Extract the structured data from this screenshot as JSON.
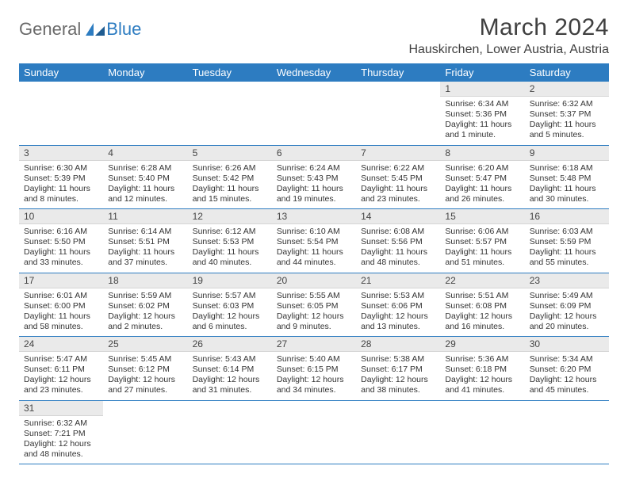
{
  "brand": {
    "name_gray": "General",
    "name_blue": "Blue"
  },
  "title": "March 2024",
  "location": "Hauskirchen, Lower Austria, Austria",
  "colors": {
    "header_bg": "#2d7cc1",
    "header_fg": "#ffffff",
    "daynum_bg": "#eaeaea",
    "row_border": "#2d7cc1",
    "text": "#333333",
    "logo_gray": "#6a6a6a",
    "logo_blue": "#2d7cc1"
  },
  "weekdays": [
    "Sunday",
    "Monday",
    "Tuesday",
    "Wednesday",
    "Thursday",
    "Friday",
    "Saturday"
  ],
  "weeks": [
    [
      {
        "n": "",
        "sr": "",
        "ss": "",
        "dl": ""
      },
      {
        "n": "",
        "sr": "",
        "ss": "",
        "dl": ""
      },
      {
        "n": "",
        "sr": "",
        "ss": "",
        "dl": ""
      },
      {
        "n": "",
        "sr": "",
        "ss": "",
        "dl": ""
      },
      {
        "n": "",
        "sr": "",
        "ss": "",
        "dl": ""
      },
      {
        "n": "1",
        "sr": "Sunrise: 6:34 AM",
        "ss": "Sunset: 5:36 PM",
        "dl": "Daylight: 11 hours and 1 minute."
      },
      {
        "n": "2",
        "sr": "Sunrise: 6:32 AM",
        "ss": "Sunset: 5:37 PM",
        "dl": "Daylight: 11 hours and 5 minutes."
      }
    ],
    [
      {
        "n": "3",
        "sr": "Sunrise: 6:30 AM",
        "ss": "Sunset: 5:39 PM",
        "dl": "Daylight: 11 hours and 8 minutes."
      },
      {
        "n": "4",
        "sr": "Sunrise: 6:28 AM",
        "ss": "Sunset: 5:40 PM",
        "dl": "Daylight: 11 hours and 12 minutes."
      },
      {
        "n": "5",
        "sr": "Sunrise: 6:26 AM",
        "ss": "Sunset: 5:42 PM",
        "dl": "Daylight: 11 hours and 15 minutes."
      },
      {
        "n": "6",
        "sr": "Sunrise: 6:24 AM",
        "ss": "Sunset: 5:43 PM",
        "dl": "Daylight: 11 hours and 19 minutes."
      },
      {
        "n": "7",
        "sr": "Sunrise: 6:22 AM",
        "ss": "Sunset: 5:45 PM",
        "dl": "Daylight: 11 hours and 23 minutes."
      },
      {
        "n": "8",
        "sr": "Sunrise: 6:20 AM",
        "ss": "Sunset: 5:47 PM",
        "dl": "Daylight: 11 hours and 26 minutes."
      },
      {
        "n": "9",
        "sr": "Sunrise: 6:18 AM",
        "ss": "Sunset: 5:48 PM",
        "dl": "Daylight: 11 hours and 30 minutes."
      }
    ],
    [
      {
        "n": "10",
        "sr": "Sunrise: 6:16 AM",
        "ss": "Sunset: 5:50 PM",
        "dl": "Daylight: 11 hours and 33 minutes."
      },
      {
        "n": "11",
        "sr": "Sunrise: 6:14 AM",
        "ss": "Sunset: 5:51 PM",
        "dl": "Daylight: 11 hours and 37 minutes."
      },
      {
        "n": "12",
        "sr": "Sunrise: 6:12 AM",
        "ss": "Sunset: 5:53 PM",
        "dl": "Daylight: 11 hours and 40 minutes."
      },
      {
        "n": "13",
        "sr": "Sunrise: 6:10 AM",
        "ss": "Sunset: 5:54 PM",
        "dl": "Daylight: 11 hours and 44 minutes."
      },
      {
        "n": "14",
        "sr": "Sunrise: 6:08 AM",
        "ss": "Sunset: 5:56 PM",
        "dl": "Daylight: 11 hours and 48 minutes."
      },
      {
        "n": "15",
        "sr": "Sunrise: 6:06 AM",
        "ss": "Sunset: 5:57 PM",
        "dl": "Daylight: 11 hours and 51 minutes."
      },
      {
        "n": "16",
        "sr": "Sunrise: 6:03 AM",
        "ss": "Sunset: 5:59 PM",
        "dl": "Daylight: 11 hours and 55 minutes."
      }
    ],
    [
      {
        "n": "17",
        "sr": "Sunrise: 6:01 AM",
        "ss": "Sunset: 6:00 PM",
        "dl": "Daylight: 11 hours and 58 minutes."
      },
      {
        "n": "18",
        "sr": "Sunrise: 5:59 AM",
        "ss": "Sunset: 6:02 PM",
        "dl": "Daylight: 12 hours and 2 minutes."
      },
      {
        "n": "19",
        "sr": "Sunrise: 5:57 AM",
        "ss": "Sunset: 6:03 PM",
        "dl": "Daylight: 12 hours and 6 minutes."
      },
      {
        "n": "20",
        "sr": "Sunrise: 5:55 AM",
        "ss": "Sunset: 6:05 PM",
        "dl": "Daylight: 12 hours and 9 minutes."
      },
      {
        "n": "21",
        "sr": "Sunrise: 5:53 AM",
        "ss": "Sunset: 6:06 PM",
        "dl": "Daylight: 12 hours and 13 minutes."
      },
      {
        "n": "22",
        "sr": "Sunrise: 5:51 AM",
        "ss": "Sunset: 6:08 PM",
        "dl": "Daylight: 12 hours and 16 minutes."
      },
      {
        "n": "23",
        "sr": "Sunrise: 5:49 AM",
        "ss": "Sunset: 6:09 PM",
        "dl": "Daylight: 12 hours and 20 minutes."
      }
    ],
    [
      {
        "n": "24",
        "sr": "Sunrise: 5:47 AM",
        "ss": "Sunset: 6:11 PM",
        "dl": "Daylight: 12 hours and 23 minutes."
      },
      {
        "n": "25",
        "sr": "Sunrise: 5:45 AM",
        "ss": "Sunset: 6:12 PM",
        "dl": "Daylight: 12 hours and 27 minutes."
      },
      {
        "n": "26",
        "sr": "Sunrise: 5:43 AM",
        "ss": "Sunset: 6:14 PM",
        "dl": "Daylight: 12 hours and 31 minutes."
      },
      {
        "n": "27",
        "sr": "Sunrise: 5:40 AM",
        "ss": "Sunset: 6:15 PM",
        "dl": "Daylight: 12 hours and 34 minutes."
      },
      {
        "n": "28",
        "sr": "Sunrise: 5:38 AM",
        "ss": "Sunset: 6:17 PM",
        "dl": "Daylight: 12 hours and 38 minutes."
      },
      {
        "n": "29",
        "sr": "Sunrise: 5:36 AM",
        "ss": "Sunset: 6:18 PM",
        "dl": "Daylight: 12 hours and 41 minutes."
      },
      {
        "n": "30",
        "sr": "Sunrise: 5:34 AM",
        "ss": "Sunset: 6:20 PM",
        "dl": "Daylight: 12 hours and 45 minutes."
      }
    ],
    [
      {
        "n": "31",
        "sr": "Sunrise: 6:32 AM",
        "ss": "Sunset: 7:21 PM",
        "dl": "Daylight: 12 hours and 48 minutes."
      },
      {
        "n": "",
        "sr": "",
        "ss": "",
        "dl": ""
      },
      {
        "n": "",
        "sr": "",
        "ss": "",
        "dl": ""
      },
      {
        "n": "",
        "sr": "",
        "ss": "",
        "dl": ""
      },
      {
        "n": "",
        "sr": "",
        "ss": "",
        "dl": ""
      },
      {
        "n": "",
        "sr": "",
        "ss": "",
        "dl": ""
      },
      {
        "n": "",
        "sr": "",
        "ss": "",
        "dl": ""
      }
    ]
  ]
}
